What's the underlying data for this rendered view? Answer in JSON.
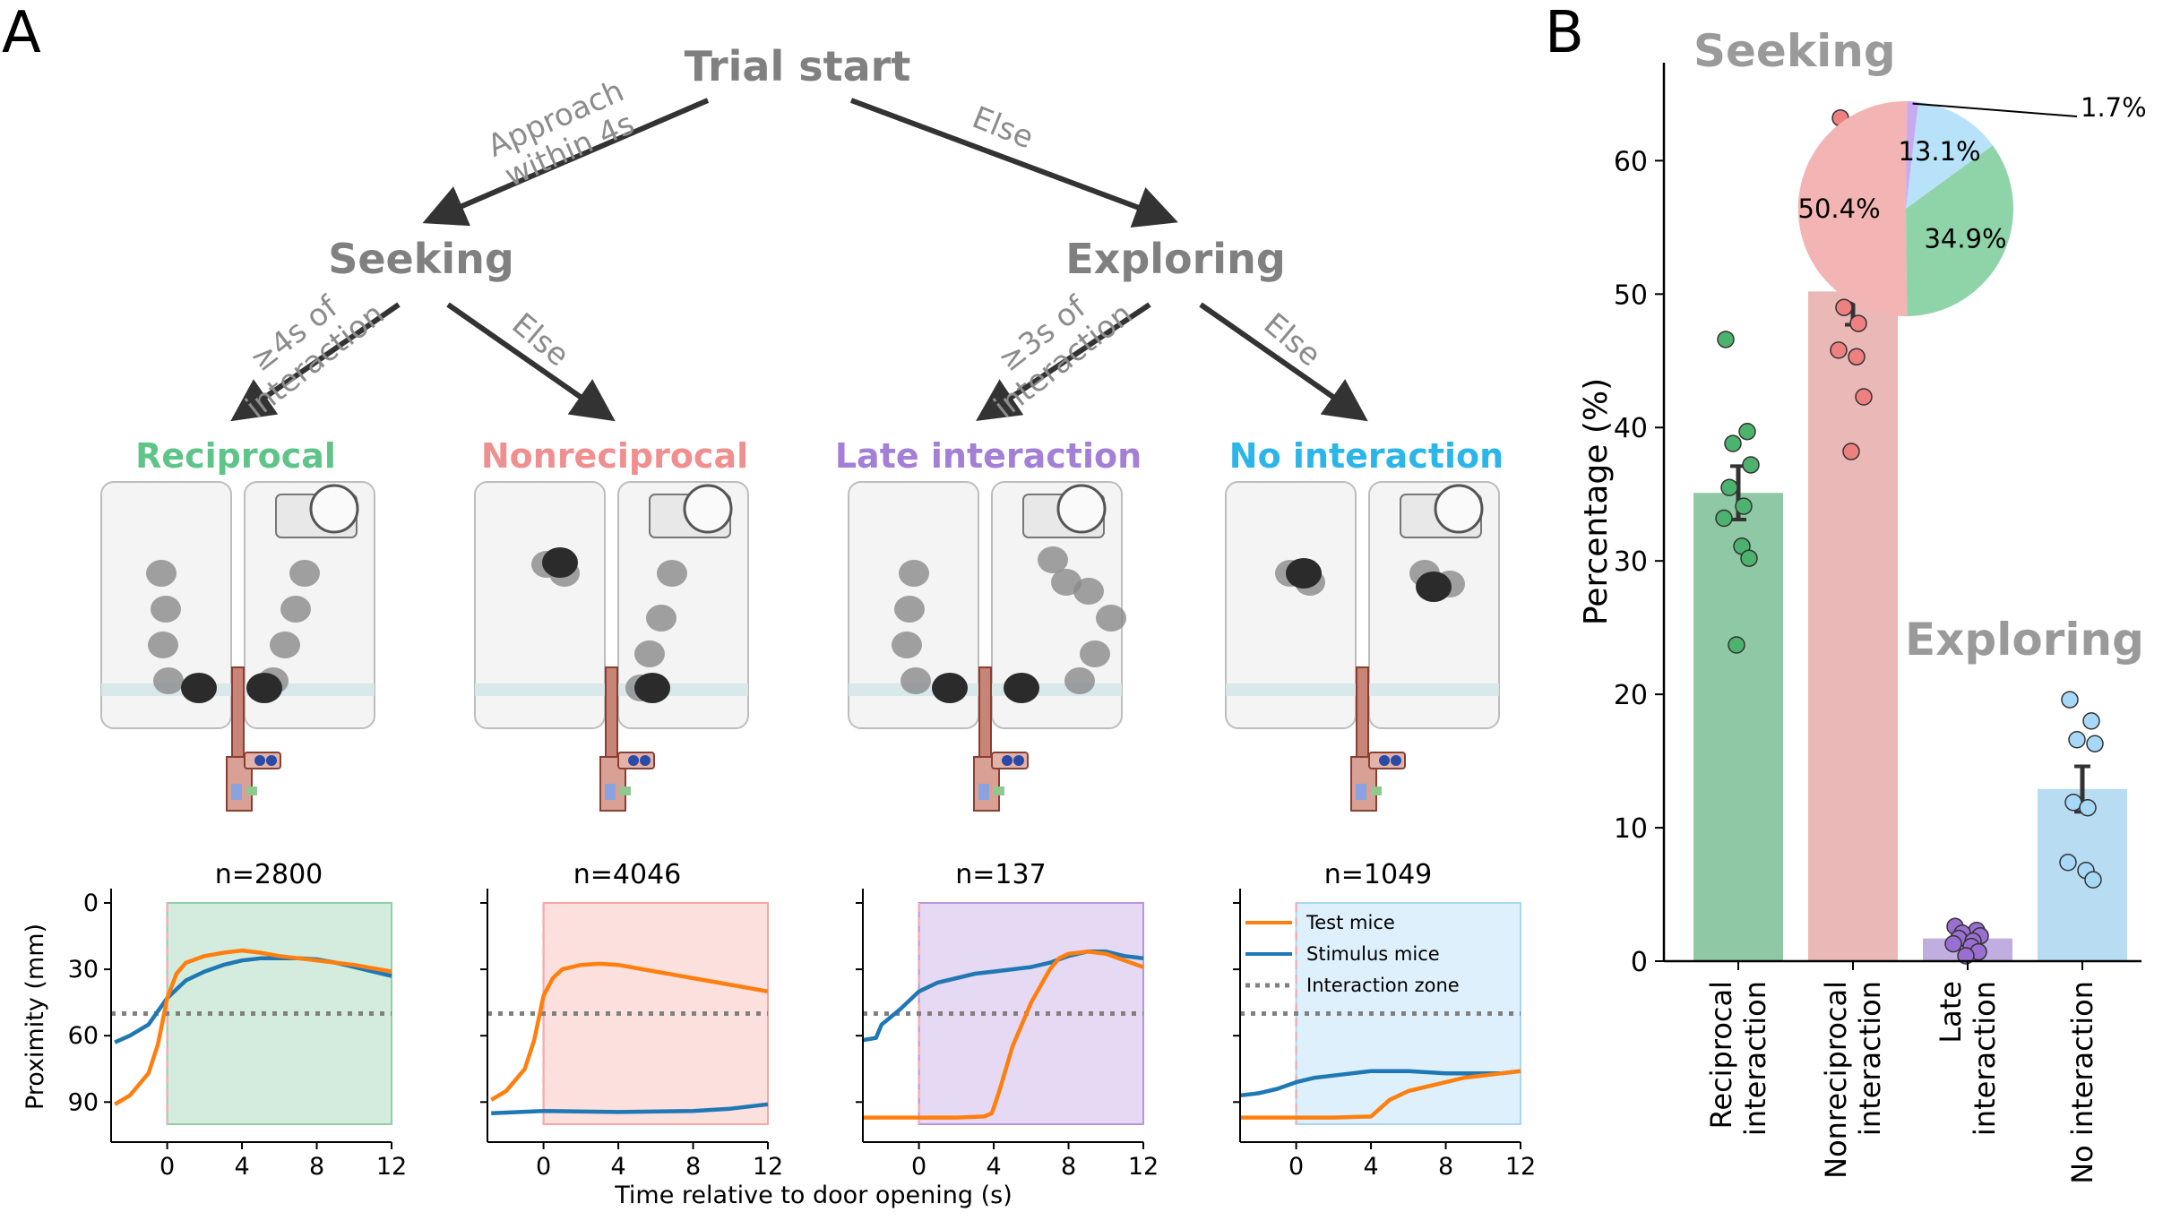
{
  "panel_a": {
    "letter": "A",
    "root": "Trial start",
    "rule_seeking_line1": "Approach",
    "rule_seeking_line2": "within 4s",
    "rule_exploring": "Else",
    "seeking": "Seeking",
    "exploring": "Exploring",
    "rule_reciprocal_line1": "≥4s of",
    "rule_reciprocal_line2": "interaction",
    "rule_nonreciprocal": "Else",
    "rule_late_line1": "≥3s of",
    "rule_late_line2": "interaction",
    "rule_nointeraction": "Else",
    "outcomes": [
      {
        "label": "Reciprocal",
        "color": "#5fc488",
        "n": "n=2800"
      },
      {
        "label": "Nonreciprocal",
        "color": "#f08f8f",
        "n": "n=4046"
      },
      {
        "label": "Late interaction",
        "color": "#a47fd6",
        "n": "n=137"
      },
      {
        "label": "No interaction",
        "color": "#2cb5e8",
        "n": "n=1049"
      }
    ]
  },
  "chart_data": [
    {
      "type": "line",
      "panel": "A-traces",
      "xlabel": "Time relative to door opening (s)",
      "ylabel": "Proximity (mm)",
      "xticks": [
        "0",
        "4",
        "8",
        "12"
      ],
      "yticks": [
        "0",
        "30",
        "60",
        "90"
      ],
      "xlim": [
        -3,
        12
      ],
      "ylim": [
        0,
        100
      ],
      "y_inverted": true,
      "threshold": 50,
      "legend": [
        {
          "name": "Test mice",
          "color": "#ff7f0e",
          "style": "solid"
        },
        {
          "name": "Stimulus mice",
          "color": "#1f77b4",
          "style": "solid"
        },
        {
          "name": "Interaction zone",
          "color": "#808080",
          "style": "dotted"
        }
      ],
      "shade_colors": [
        "#d3ecdd",
        "#fbe0de",
        "#e6d9f3",
        "#def0fb"
      ],
      "shade_edges": [
        "#8fcfa8",
        "#f2a8a4",
        "#b896dd",
        "#a7d8f2"
      ],
      "panels": [
        {
          "test_x": [
            -2.8,
            -2,
            -1,
            -0.5,
            0,
            0.5,
            1,
            2,
            3,
            4,
            5,
            6,
            8,
            10,
            12
          ],
          "test_y": [
            91,
            87,
            77,
            64,
            43,
            32,
            27,
            24,
            22.5,
            21.5,
            22.5,
            24,
            26,
            28,
            31
          ],
          "stim_x": [
            -2.8,
            -2,
            -1,
            0,
            1,
            2,
            3,
            4,
            5,
            6,
            7,
            8,
            9,
            10,
            11,
            12
          ],
          "stim_y": [
            63,
            60,
            55,
            43,
            35,
            31,
            28,
            26,
            25,
            25,
            25,
            25.5,
            27,
            29,
            31,
            33
          ]
        },
        {
          "test_x": [
            -2.8,
            -2,
            -1,
            -0.5,
            0,
            0.5,
            1,
            2,
            3,
            4,
            6,
            8,
            10,
            12
          ],
          "test_y": [
            89,
            85,
            75,
            62,
            42,
            34,
            30,
            28,
            27.5,
            28,
            31,
            34,
            37,
            40
          ],
          "stim_x": [
            -2.8,
            0,
            4,
            8,
            10,
            12
          ],
          "stim_y": [
            95,
            94,
            94.5,
            94,
            93,
            91
          ]
        },
        {
          "test_x": [
            -3,
            0,
            2,
            3.5,
            3.9,
            4.3,
            5,
            6,
            7,
            7.5,
            8,
            9,
            10,
            11,
            12
          ],
          "test_y": [
            97,
            97,
            97,
            96.5,
            95,
            85,
            65,
            45,
            30,
            25,
            23,
            22,
            23,
            26,
            29
          ],
          "stim_x": [
            -3,
            -2.3,
            -2,
            -1,
            0,
            1,
            2,
            3,
            4,
            5,
            6,
            7,
            8,
            9,
            10,
            11,
            12
          ],
          "stim_y": [
            62,
            61,
            55,
            48,
            40,
            36,
            34,
            32,
            31,
            30,
            29,
            27,
            24,
            22,
            22,
            24,
            25
          ]
        },
        {
          "test_x": [
            -3,
            0,
            2,
            4,
            5,
            6,
            7,
            8,
            9,
            10,
            11,
            12
          ],
          "test_y": [
            97,
            97,
            97,
            96.5,
            89,
            85,
            83,
            81,
            79,
            78,
            77,
            76
          ],
          "stim_x": [
            -3,
            -2,
            -1,
            0,
            1,
            2,
            3,
            4,
            5,
            6,
            7,
            8,
            9,
            10,
            11,
            12
          ],
          "stim_y": [
            87,
            86,
            84,
            81,
            79,
            78,
            77,
            76,
            76,
            76,
            76.5,
            77,
            77,
            77,
            77,
            76
          ]
        }
      ]
    },
    {
      "type": "bar",
      "panel": "B",
      "letter": "B",
      "ylabel": "Percentage (%)",
      "yticks": [
        "0",
        "10",
        "20",
        "30",
        "40",
        "50",
        "60"
      ],
      "ylim": [
        0,
        66
      ],
      "categories": [
        [
          "Reciprocal",
          "interaction"
        ],
        [
          "Nonreciprocal",
          "interaction"
        ],
        [
          "Late",
          "interaction"
        ],
        [
          "No interaction"
        ]
      ],
      "values": [
        35.1,
        50.2,
        1.7,
        12.9
      ],
      "errors": [
        2.0,
        2.5,
        0.3,
        1.7
      ],
      "bar_colors": [
        "#8fc8a5",
        "#ebb8b8",
        "#c1aee0",
        "#b8dcf2"
      ],
      "dot_colors": [
        "#4cb36f",
        "#ee8080",
        "#9b6fd2",
        "#a8d8f8"
      ],
      "points": [
        [
          46.6,
          39.7,
          38.8,
          37.2,
          35.5,
          34.1,
          33.2,
          31.1,
          30.2,
          23.7
        ],
        [
          63.2,
          60.6,
          55.9,
          52.4,
          49.0,
          47.8,
          45.8,
          45.3,
          42.3,
          38.2
        ],
        [
          2.6,
          2.3,
          2.1,
          1.9,
          1.7,
          1.5,
          1.3,
          1.1,
          0.7,
          0.4
        ],
        [
          19.6,
          18.0,
          16.6,
          16.3,
          11.9,
          11.5,
          7.4,
          6.8,
          6.1
        ]
      ],
      "group_labels": [
        "Seeking",
        "Exploring"
      ],
      "pie": {
        "values": [
          50.4,
          34.9,
          13.1,
          1.7
        ],
        "labels": [
          "50.4%",
          "34.9%",
          "13.1%",
          "1.7%"
        ],
        "colors": [
          "#f3b4b4",
          "#8fd4a8",
          "#b8e2fa",
          "#c8aaf0"
        ]
      }
    }
  ]
}
